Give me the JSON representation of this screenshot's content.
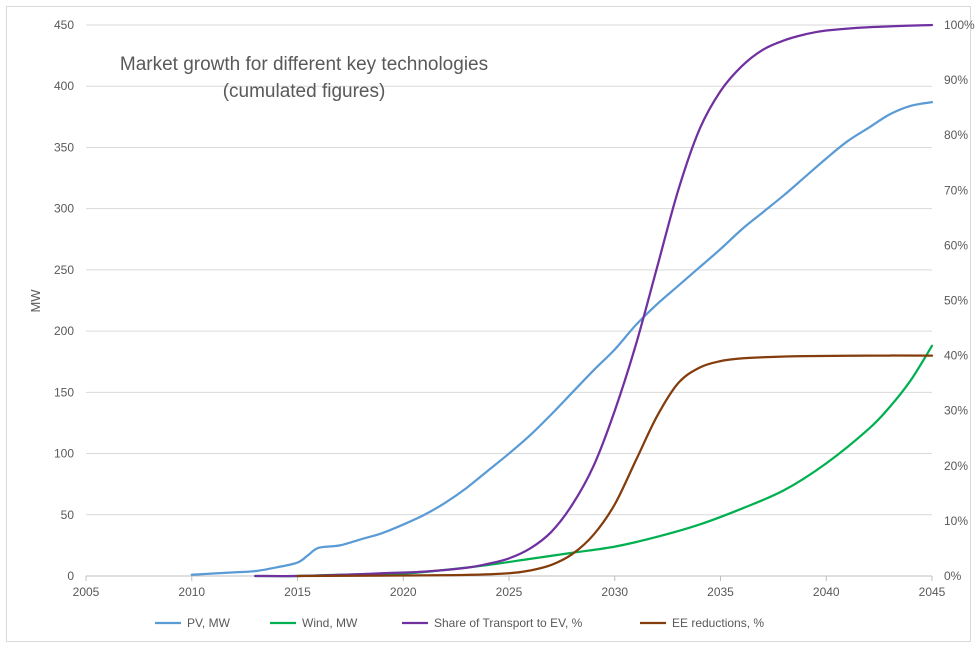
{
  "chart_data": {
    "type": "line",
    "title_lines": [
      "Market growth for different key technologies",
      "(cumulated figures)"
    ],
    "ylabel": "MW",
    "xlabel": "",
    "xlim": [
      2005,
      2045
    ],
    "ylim": [
      0,
      450
    ],
    "y2lim": [
      0,
      1
    ],
    "x_ticks": [
      "2005",
      "2010",
      "2015",
      "2020",
      "2025",
      "2030",
      "2035",
      "2040",
      "2045"
    ],
    "y_ticks": [
      "0",
      "50",
      "100",
      "150",
      "200",
      "250",
      "300",
      "350",
      "400",
      "450"
    ],
    "y2_ticks": [
      "0%",
      "10%",
      "20%",
      "30%",
      "40%",
      "50%",
      "60%",
      "70%",
      "80%",
      "90%",
      "100%"
    ],
    "grid": "horizontal",
    "legend": "bottom",
    "series": [
      {
        "name": "PV, MW",
        "axis": "left",
        "color": "#5b9bd5",
        "points": [
          [
            2010,
            1
          ],
          [
            2011,
            2
          ],
          [
            2012,
            3
          ],
          [
            2013,
            4
          ],
          [
            2014,
            7
          ],
          [
            2015,
            11
          ],
          [
            2015.5,
            17
          ],
          [
            2016,
            23
          ],
          [
            2017,
            25
          ],
          [
            2018,
            30
          ],
          [
            2019,
            35
          ],
          [
            2020,
            42
          ],
          [
            2021,
            50
          ],
          [
            2022,
            60
          ],
          [
            2023,
            72
          ],
          [
            2024,
            86
          ],
          [
            2025,
            100
          ],
          [
            2026,
            115
          ],
          [
            2027,
            132
          ],
          [
            2028,
            150
          ],
          [
            2029,
            168
          ],
          [
            2030,
            185
          ],
          [
            2031,
            205
          ],
          [
            2032,
            222
          ],
          [
            2033,
            237
          ],
          [
            2034,
            252
          ],
          [
            2035,
            267
          ],
          [
            2036,
            283
          ],
          [
            2037,
            297
          ],
          [
            2038,
            311
          ],
          [
            2039,
            326
          ],
          [
            2040,
            341
          ],
          [
            2041,
            355
          ],
          [
            2042,
            366
          ],
          [
            2043,
            377
          ],
          [
            2044,
            384
          ],
          [
            2045,
            387
          ]
        ]
      },
      {
        "name": "Wind, MW",
        "axis": "left",
        "color": "#00b050",
        "points": [
          [
            2013,
            0
          ],
          [
            2015,
            0
          ],
          [
            2017,
            1
          ],
          [
            2020,
            2
          ],
          [
            2022,
            5
          ],
          [
            2024,
            9
          ],
          [
            2026,
            14
          ],
          [
            2028,
            19
          ],
          [
            2030,
            24
          ],
          [
            2032,
            32
          ],
          [
            2034,
            42
          ],
          [
            2036,
            55
          ],
          [
            2038,
            70
          ],
          [
            2040,
            92
          ],
          [
            2042,
            120
          ],
          [
            2043,
            138
          ],
          [
            2044,
            160
          ],
          [
            2045,
            188
          ]
        ]
      },
      {
        "name": "Share of Transport to EV, %",
        "axis": "right",
        "color": "#7030a0",
        "points": [
          [
            2013,
            0
          ],
          [
            2015,
            0
          ],
          [
            2017,
            0.002
          ],
          [
            2019,
            0.005
          ],
          [
            2021,
            0.008
          ],
          [
            2023,
            0.015
          ],
          [
            2024,
            0.022
          ],
          [
            2025,
            0.032
          ],
          [
            2026,
            0.05
          ],
          [
            2027,
            0.08
          ],
          [
            2028,
            0.13
          ],
          [
            2029,
            0.2
          ],
          [
            2030,
            0.3
          ],
          [
            2031,
            0.42
          ],
          [
            2032,
            0.56
          ],
          [
            2033,
            0.7
          ],
          [
            2034,
            0.81
          ],
          [
            2035,
            0.88
          ],
          [
            2036,
            0.925
          ],
          [
            2037,
            0.955
          ],
          [
            2038,
            0.972
          ],
          [
            2039,
            0.983
          ],
          [
            2040,
            0.99
          ],
          [
            2042,
            0.996
          ],
          [
            2045,
            1
          ]
        ]
      },
      {
        "name": "EE reductions, %",
        "axis": "right",
        "color": "#843c0c",
        "points": [
          [
            2015,
            0
          ],
          [
            2020,
            0.001
          ],
          [
            2023,
            0.002
          ],
          [
            2025,
            0.005
          ],
          [
            2026,
            0.01
          ],
          [
            2027,
            0.02
          ],
          [
            2028,
            0.04
          ],
          [
            2029,
            0.075
          ],
          [
            2030,
            0.13
          ],
          [
            2031,
            0.21
          ],
          [
            2032,
            0.29
          ],
          [
            2033,
            0.35
          ],
          [
            2034,
            0.378
          ],
          [
            2035,
            0.39
          ],
          [
            2036,
            0.395
          ],
          [
            2037,
            0.397
          ],
          [
            2039,
            0.399
          ],
          [
            2042,
            0.4
          ],
          [
            2045,
            0.4
          ]
        ]
      }
    ]
  }
}
